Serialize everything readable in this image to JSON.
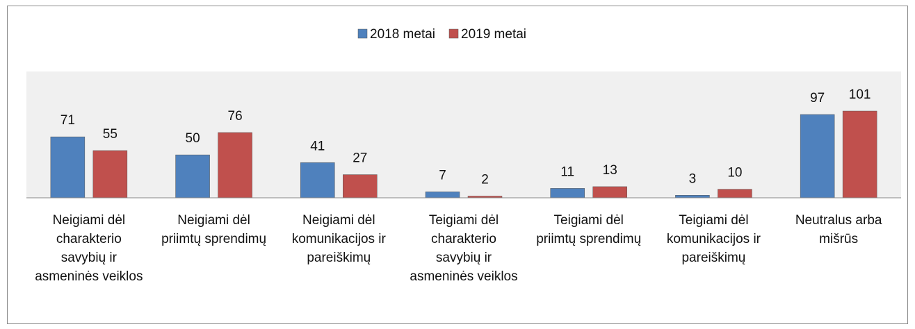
{
  "chart_data": {
    "type": "bar",
    "categories": [
      "Neigiami dėl charakterio savybių ir asmeninės veiklos",
      "Neigiami dėl priimtų sprendimų",
      "Neigiami dėl komunikacijos ir pareiškimų",
      "Teigiami dėl charakterio savybių ir asmeninės veiklos",
      "Teigiami dėl priimtų sprendimų",
      "Teigiami dėl komunikacijos ir pareiškimų",
      "Neutralus arba mišrūs"
    ],
    "series": [
      {
        "name": "2018 metai",
        "color": "#4f81bd",
        "values": [
          71,
          50,
          41,
          7,
          11,
          3,
          97
        ]
      },
      {
        "name": "2019 metai",
        "color": "#c0504d",
        "values": [
          55,
          76,
          27,
          2,
          13,
          10,
          101
        ]
      }
    ],
    "legend": "top"
  }
}
